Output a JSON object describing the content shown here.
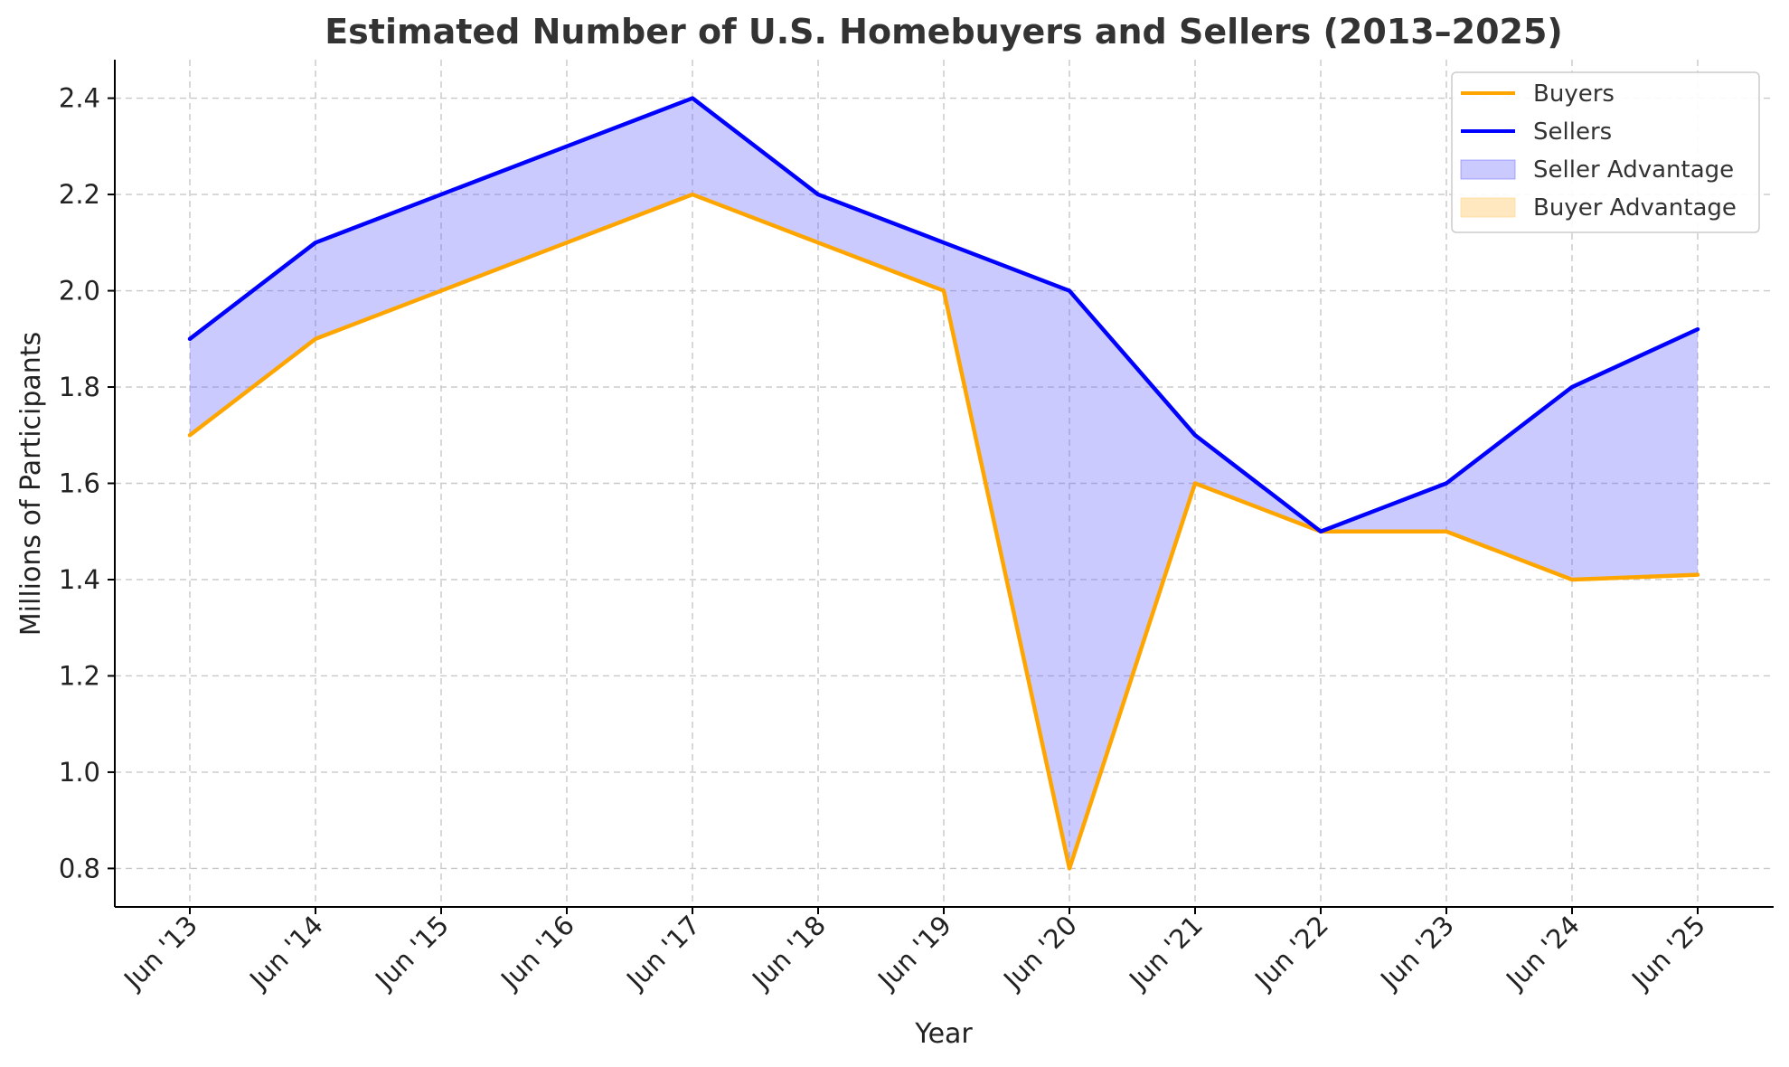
{
  "chart_data": {
    "type": "line",
    "title": "Estimated Number of U.S. Homebuyers and Sellers (2013–2025)",
    "xlabel": "Year",
    "ylabel": "Millions of Participants",
    "categories": [
      "Jun '13",
      "Jun '14",
      "Jun '15",
      "Jun '16",
      "Jun '17",
      "Jun '18",
      "Jun '19",
      "Jun '20",
      "Jun '21",
      "Jun '22",
      "Jun '23",
      "Jun '24",
      "Jun '25"
    ],
    "series": [
      {
        "name": "Buyers",
        "color": "#FFA500",
        "values": [
          1.7,
          1.9,
          2.0,
          2.1,
          2.2,
          2.1,
          2.0,
          0.8,
          1.6,
          1.5,
          1.5,
          1.4,
          1.41
        ]
      },
      {
        "name": "Sellers",
        "color": "#0000FF",
        "values": [
          1.9,
          2.1,
          2.2,
          2.3,
          2.4,
          2.2,
          2.1,
          2.0,
          1.7,
          1.5,
          1.6,
          1.8,
          1.92
        ]
      }
    ],
    "fills": [
      {
        "name": "Seller Advantage",
        "color": "#6666FF"
      },
      {
        "name": "Buyer Advantage",
        "color": "#FFD27F"
      }
    ],
    "ylim": [
      0.72,
      2.48
    ],
    "yticks": [
      "0.8",
      "1.0",
      "1.2",
      "1.4",
      "1.6",
      "1.8",
      "2.0",
      "2.2",
      "2.4"
    ],
    "grid": true,
    "legend_position": "top-right"
  }
}
